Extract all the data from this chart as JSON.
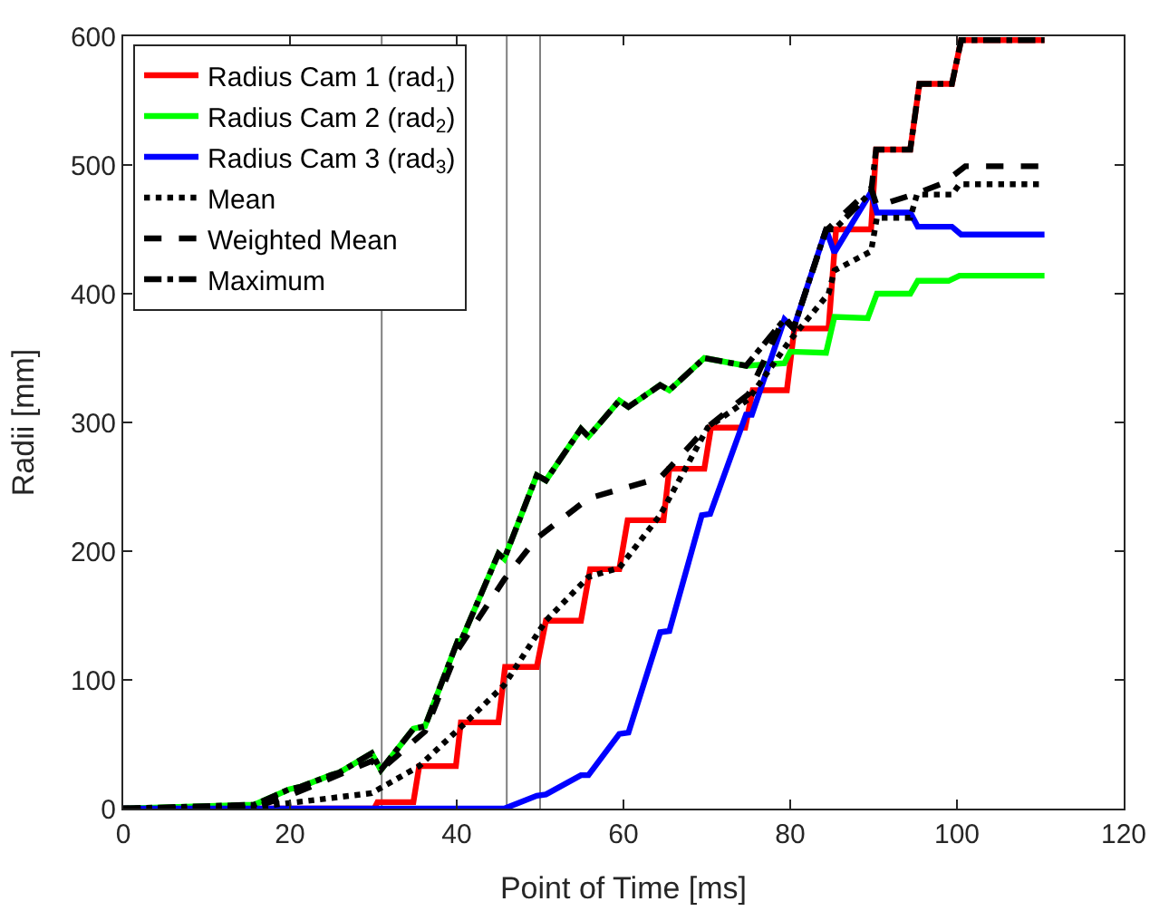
{
  "chart_data": {
    "type": "line",
    "xlabel": "Point of Time [ms]",
    "ylabel": "Radii [mm]",
    "xlim": [
      0,
      120
    ],
    "ylim": [
      0,
      600
    ],
    "xticks": [
      0,
      20,
      40,
      60,
      80,
      100,
      120
    ],
    "yticks": [
      0,
      100,
      200,
      300,
      400,
      500,
      600
    ],
    "grid": false,
    "legend": "top left",
    "marker": "none",
    "ref_lines": [
      {
        "axis": "x",
        "value": 31,
        "color": "#808080"
      },
      {
        "axis": "x",
        "value": 46,
        "color": "#808080"
      },
      {
        "axis": "x",
        "value": 50,
        "color": "#808080"
      }
    ],
    "series": [
      {
        "name": "Radius Cam 1 (rad$_{1}$)",
        "color": "#ff0000",
        "line_style": "solid",
        "x": [
          0,
          30.1,
          30.5,
          34.8,
          35.5,
          39.9,
          40.5,
          45,
          45.8,
          49.6,
          50.7,
          54.9,
          56,
          59.5,
          60.5,
          64.8,
          65.5,
          69.7,
          70.5,
          74.6,
          75.5,
          79.6,
          80.5,
          84.6,
          85.5,
          89.7,
          90.3,
          94.4,
          95.5,
          99.4,
          100.5,
          110.5
        ],
        "values": [
          0,
          0,
          5,
          5,
          33,
          33,
          67,
          67,
          110,
          110,
          146,
          146,
          186,
          186,
          224,
          224,
          264,
          264,
          296,
          296,
          325,
          325,
          373,
          373,
          450,
          450,
          512,
          512,
          563,
          563,
          597,
          597
        ]
      },
      {
        "name": "Radius Cam 2 (rad$_{2}$)",
        "color": "#00ff00",
        "line_style": "solid",
        "x": [
          0,
          15.7,
          19.9,
          21.3,
          24.9,
          25.9,
          29.8,
          30.9,
          34.8,
          36.2,
          40.1,
          40.5,
          45,
          45.7,
          49.6,
          50.7,
          54.9,
          55.8,
          59.5,
          60.6,
          64.4,
          65.5,
          69.7,
          74.7,
          79.3,
          80,
          84.3,
          85.3,
          89.3,
          90.4,
          94.4,
          95.3,
          99,
          100.3,
          110.5
        ],
        "values": [
          0,
          3,
          15,
          17,
          26,
          28,
          43,
          30,
          62,
          64,
          130,
          130,
          198,
          194,
          259,
          255,
          295,
          289,
          317,
          312,
          329,
          325,
          350,
          344,
          346,
          355,
          354,
          382,
          381,
          400,
          400,
          410,
          410,
          414,
          414
        ]
      },
      {
        "name": "Radius Cam 3 (rad$_{3}$)",
        "color": "#0000ff",
        "line_style": "solid",
        "x": [
          0,
          45.7,
          49.6,
          50.7,
          54.9,
          55.8,
          59.5,
          60.6,
          64.4,
          65.5,
          69.4,
          70.4,
          74.7,
          75.4,
          79.3,
          80.4,
          84.3,
          85.3,
          89.7,
          90.4,
          94.4,
          95.3,
          99.4,
          100.5,
          110.5
        ],
        "values": [
          0,
          0,
          10,
          11,
          26,
          26,
          58,
          59,
          137,
          138,
          228,
          229,
          306,
          306,
          380,
          373,
          450,
          432,
          479,
          463,
          463,
          452,
          452,
          446,
          446
        ]
      },
      {
        "name": "Mean",
        "color": "#000000",
        "line_style": "dotted",
        "x": [
          0,
          15.7,
          29.8,
          35.5,
          41.1,
          45.7,
          50.7,
          55.8,
          59.5,
          64.4,
          70.1,
          75,
          80,
          84.6,
          85.3,
          89.7,
          90.4,
          94.4,
          95.2,
          99.4,
          100.3,
          110.5
        ],
        "values": [
          0,
          1,
          12,
          33,
          67,
          96,
          146,
          180,
          187,
          228,
          296,
          318,
          364,
          400,
          418,
          433,
          459,
          459,
          477,
          477,
          485,
          485
        ]
      },
      {
        "name": "Weighted Mean",
        "color": "#000000",
        "line_style": "dashed",
        "x": [
          0,
          15.7,
          19.9,
          29.8,
          30.9,
          36.2,
          40.1,
          45.7,
          49.6,
          55.8,
          64.4,
          70,
          75,
          79.3,
          80.4,
          84.3,
          89.7,
          90.4,
          95.2,
          98.4,
          101,
          110.5
        ],
        "values": [
          0,
          1,
          10,
          37,
          30,
          60,
          123,
          178,
          210,
          241,
          257,
          296,
          322,
          382,
          373,
          449,
          482,
          468,
          478,
          486,
          499,
          499
        ]
      },
      {
        "name": "Maximum",
        "color": "#000000",
        "line_style": "dashdot",
        "x": [
          0,
          15.7,
          19.9,
          21.3,
          24.9,
          25.9,
          29.8,
          30.9,
          34.8,
          36.2,
          40.1,
          40.5,
          45,
          45.7,
          49.6,
          50.7,
          54.9,
          55.8,
          59.5,
          60.6,
          64.4,
          65.5,
          69.7,
          74.7,
          79.3,
          80.4,
          84.3,
          85.3,
          89.7,
          90.3,
          94.4,
          95.5,
          99.4,
          100.5,
          110.5
        ],
        "values": [
          0,
          3,
          15,
          17,
          26,
          28,
          43,
          30,
          62,
          64,
          130,
          130,
          198,
          194,
          259,
          255,
          295,
          289,
          317,
          312,
          329,
          325,
          350,
          344,
          380,
          373,
          450,
          450,
          479,
          512,
          512,
          563,
          563,
          597,
          597
        ]
      }
    ]
  }
}
